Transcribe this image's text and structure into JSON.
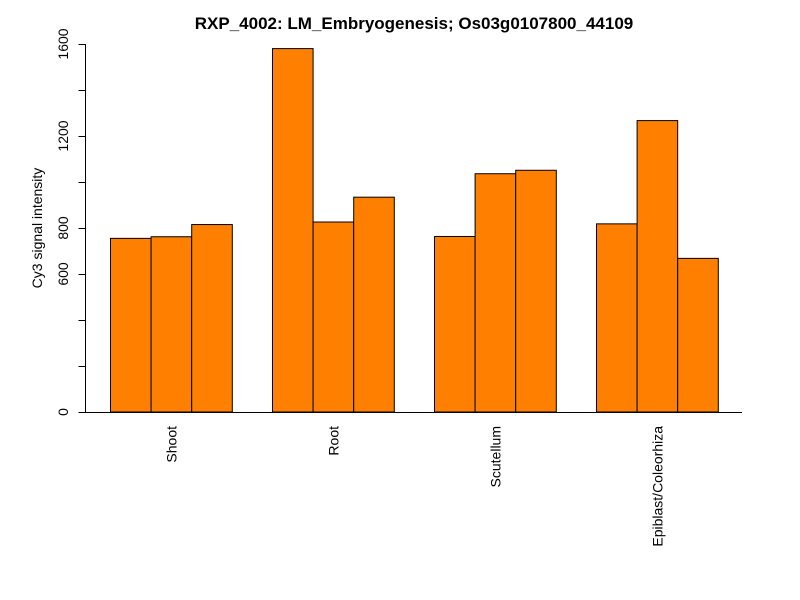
{
  "chart_data": {
    "type": "bar",
    "title": "RXP_4002: LM_Embryogenesis; Os03g0107800_44109",
    "ylabel": "Cy3 signal intensity",
    "xlabel": "",
    "ylim": [
      0,
      1600
    ],
    "y_ticks": [
      0,
      600,
      800,
      1200,
      1600
    ],
    "bar_color": "#ff7f00",
    "groups": [
      {
        "label": "Shoot",
        "values": [
          755,
          762,
          815
        ]
      },
      {
        "label": "Root",
        "values": [
          1580,
          826,
          934
        ]
      },
      {
        "label": "Scutellum",
        "values": [
          763,
          1036,
          1051
        ]
      },
      {
        "label": "Epiblast/Coleorhiza",
        "values": [
          818,
          1267,
          668
        ]
      }
    ]
  }
}
